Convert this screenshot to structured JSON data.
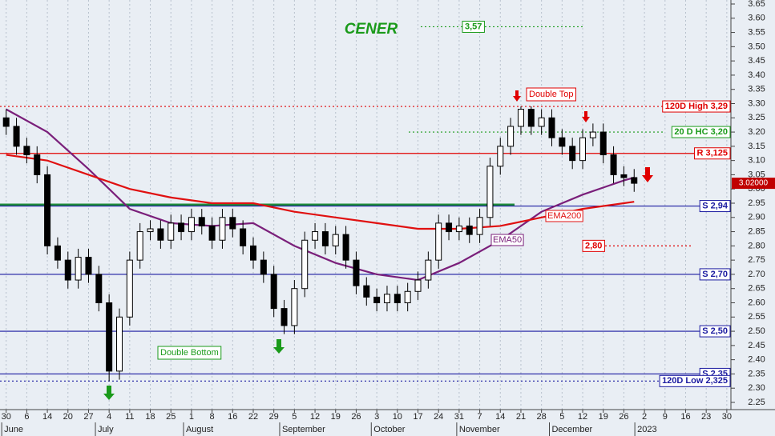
{
  "chart_data": {
    "type": "candlestick",
    "title": "CENER",
    "x": [
      0,
      0.5,
      1,
      1.5,
      2,
      2.5,
      3,
      3.5,
      4,
      4.5,
      5,
      5.5,
      6,
      6.5,
      7,
      7.5,
      8,
      8.5,
      9,
      9.5,
      10,
      10.5,
      11,
      11.5,
      12,
      12.5,
      13,
      13.5,
      14,
      14.5,
      15,
      15.5,
      16,
      16.5,
      17,
      17.5,
      18,
      18.5,
      19,
      19.5,
      20,
      20.5,
      21,
      21.5,
      22,
      22.5,
      23,
      23.5,
      24,
      24.5,
      25,
      25.5,
      26,
      26.5,
      27,
      27.5,
      28,
      28.5,
      29,
      29.5,
      30,
      30.5
    ],
    "open": [
      3.25,
      3.22,
      3.15,
      3.12,
      3.05,
      2.8,
      2.75,
      2.68,
      2.76,
      2.7,
      2.6,
      2.36,
      2.55,
      2.75,
      2.85,
      2.86,
      2.82,
      2.88,
      2.85,
      2.9,
      2.87,
      2.82,
      2.9,
      2.86,
      2.8,
      2.75,
      2.7,
      2.58,
      2.52,
      2.65,
      2.82,
      2.85,
      2.8,
      2.84,
      2.75,
      2.66,
      2.62,
      2.6,
      2.63,
      2.6,
      2.64,
      2.68,
      2.75,
      2.88,
      2.85,
      2.87,
      2.84,
      2.9,
      3.08,
      3.15,
      3.22,
      3.28,
      3.22,
      3.25,
      3.18,
      3.15,
      3.1,
      3.18,
      3.2,
      3.12,
      3.05,
      3.04
    ],
    "high": [
      3.28,
      3.25,
      3.18,
      3.15,
      3.08,
      2.83,
      2.78,
      2.79,
      2.79,
      2.73,
      2.63,
      2.58,
      2.78,
      2.88,
      2.89,
      2.89,
      2.91,
      2.91,
      2.93,
      2.93,
      2.9,
      2.93,
      2.93,
      2.89,
      2.83,
      2.78,
      2.73,
      2.61,
      2.68,
      2.85,
      2.88,
      2.88,
      2.87,
      2.87,
      2.78,
      2.69,
      2.65,
      2.66,
      2.66,
      2.67,
      2.71,
      2.78,
      2.91,
      2.91,
      2.9,
      2.9,
      2.93,
      3.11,
      3.18,
      3.25,
      3.29,
      3.29,
      3.28,
      3.28,
      3.21,
      3.18,
      3.21,
      3.23,
      3.23,
      3.15,
      3.08,
      3.07
    ],
    "low": [
      3.19,
      3.12,
      3.09,
      3.02,
      2.77,
      2.72,
      2.65,
      2.65,
      2.67,
      2.57,
      2.325,
      2.33,
      2.52,
      2.72,
      2.82,
      2.79,
      2.79,
      2.82,
      2.82,
      2.84,
      2.79,
      2.79,
      2.83,
      2.77,
      2.72,
      2.67,
      2.55,
      2.49,
      2.49,
      2.62,
      2.79,
      2.77,
      2.77,
      2.72,
      2.63,
      2.59,
      2.57,
      2.57,
      2.57,
      2.57,
      2.61,
      2.65,
      2.72,
      2.82,
      2.82,
      2.81,
      2.81,
      2.87,
      3.05,
      3.12,
      3.19,
      3.19,
      3.19,
      3.15,
      3.12,
      3.07,
      3.07,
      3.15,
      3.09,
      3.02,
      3.01,
      2.99
    ],
    "close": [
      3.22,
      3.15,
      3.12,
      3.05,
      2.8,
      2.75,
      2.68,
      2.76,
      2.7,
      2.6,
      2.36,
      2.55,
      2.75,
      2.85,
      2.86,
      2.82,
      2.88,
      2.85,
      2.9,
      2.87,
      2.82,
      2.9,
      2.86,
      2.8,
      2.75,
      2.7,
      2.58,
      2.52,
      2.65,
      2.82,
      2.85,
      2.8,
      2.84,
      2.75,
      2.66,
      2.62,
      2.6,
      2.63,
      2.6,
      2.64,
      2.68,
      2.75,
      2.88,
      2.85,
      2.87,
      2.84,
      2.9,
      3.08,
      3.15,
      3.22,
      3.28,
      3.22,
      3.25,
      3.18,
      3.15,
      3.1,
      3.18,
      3.2,
      3.12,
      3.05,
      3.04,
      3.02
    ],
    "overlays": [
      {
        "name": "EMA50",
        "color": "#7a1f7a",
        "x": [
          0,
          2,
          4,
          6,
          8,
          10,
          12,
          14,
          16,
          18,
          20,
          22,
          24,
          26,
          28,
          30,
          30.5
        ],
        "values": [
          3.28,
          3.2,
          3.07,
          2.93,
          2.88,
          2.87,
          2.88,
          2.8,
          2.74,
          2.7,
          2.68,
          2.74,
          2.82,
          2.92,
          2.98,
          3.03,
          3.04
        ]
      },
      {
        "name": "EMA200",
        "color": "#e01010",
        "x": [
          0,
          2,
          4,
          6,
          8,
          10,
          12,
          14,
          16,
          18,
          20,
          22,
          24,
          26,
          28,
          30,
          30.5
        ],
        "values": [
          3.12,
          3.1,
          3.05,
          3.0,
          2.97,
          2.95,
          2.95,
          2.92,
          2.9,
          2.88,
          2.86,
          2.86,
          2.87,
          2.9,
          2.93,
          2.95,
          2.955
        ]
      }
    ],
    "neckline": 2.945,
    "levels": [
      {
        "label": "120D High 3,29",
        "value": 3.29,
        "color": "#e00000",
        "style": "dotted"
      },
      {
        "label": "20 D HC 3,20",
        "value": 3.2,
        "color": "#1a9a1a",
        "style": "dotted"
      },
      {
        "label": "R 3,125",
        "value": 3.125,
        "color": "#e00000",
        "style": "solid"
      },
      {
        "label": "S 2,94",
        "value": 2.94,
        "color": "#1a1aa0",
        "style": "solid"
      },
      {
        "label": "S 2,70",
        "value": 2.7,
        "color": "#1a1aa0",
        "style": "solid"
      },
      {
        "label": "S 2,50",
        "value": 2.5,
        "color": "#1a1aa0",
        "style": "solid"
      },
      {
        "label": "S 2,35",
        "value": 2.35,
        "color": "#1a1aa0",
        "style": "solid"
      },
      {
        "label": "120D Low 2,325",
        "value": 2.325,
        "color": "#1a1aa0",
        "style": "dotted"
      },
      {
        "label": "3,57",
        "value": 3.57,
        "color": "#1a9a1a",
        "style": "dotted"
      },
      {
        "label": "2,80",
        "value": 2.8,
        "color": "#e00000",
        "style": "dotted"
      }
    ],
    "last_price": {
      "value": 3.02,
      "label": "3.02000"
    },
    "annotations": [
      "Double Top",
      "Double Bottom"
    ],
    "ylim": [
      2.25,
      3.65
    ],
    "yticks": [
      2.25,
      {
        "value": 2.3,
        "label": "2.30"
      },
      2.35,
      {
        "value": 2.4,
        "label": "2.40"
      },
      2.45,
      {
        "value": 2.5,
        "label": "2.50"
      },
      2.55,
      {
        "value": 2.6,
        "label": "2.60"
      },
      2.65,
      {
        "value": 2.7,
        "label": "2.70"
      },
      2.75,
      {
        "value": 2.8,
        "label": "2.80"
      },
      2.85,
      {
        "value": 2.9,
        "label": "2.90"
      },
      2.95,
      {
        "value": 3,
        "label": "3.00"
      },
      3.05,
      {
        "value": 3.1,
        "label": "3.10"
      },
      3.15,
      {
        "value": 3.2,
        "label": "3.20"
      },
      3.25,
      {
        "value": 3.3,
        "label": "3.30"
      },
      3.35,
      {
        "value": 3.4,
        "label": "3.40"
      },
      3.45,
      {
        "value": 3.5,
        "label": "3.50"
      },
      3.55,
      {
        "value": 3.6,
        "label": "3.60"
      },
      3.65
    ],
    "xlim": [
      -0.3,
      35.2
    ],
    "xticks": [
      {
        "value": 0,
        "label": "30"
      },
      {
        "value": 1,
        "label": "6"
      },
      {
        "value": 2,
        "label": "14"
      },
      {
        "value": 3,
        "label": "20"
      },
      {
        "value": 4,
        "label": "27"
      },
      {
        "value": 5,
        "label": "4"
      },
      {
        "value": 6,
        "label": "11"
      },
      {
        "value": 7,
        "label": "18"
      },
      {
        "value": 8,
        "label": "25"
      },
      {
        "value": 9,
        "label": "1"
      },
      {
        "value": 10,
        "label": "8"
      },
      {
        "value": 11,
        "label": "16"
      },
      {
        "value": 12,
        "label": "22"
      },
      {
        "value": 13,
        "label": "29"
      },
      {
        "value": 14,
        "label": "5"
      },
      {
        "value": 15,
        "label": "12"
      },
      {
        "value": 16,
        "label": "19"
      },
      {
        "value": 17,
        "label": "26"
      },
      {
        "value": 18,
        "label": "3"
      },
      {
        "value": 19,
        "label": "10"
      },
      {
        "value": 20,
        "label": "17"
      },
      {
        "value": 21,
        "label": "24"
      },
      {
        "value": 22,
        "label": "31"
      },
      {
        "value": 23,
        "label": "7"
      },
      {
        "value": 24,
        "label": "14"
      },
      {
        "value": 25,
        "label": "21"
      },
      {
        "value": 26,
        "label": "28"
      },
      {
        "value": 27,
        "label": "5"
      },
      {
        "value": 28,
        "label": "12"
      },
      {
        "value": 29,
        "label": "19"
      },
      {
        "value": 30,
        "label": "26"
      },
      {
        "value": 31,
        "label": "2"
      },
      {
        "value": 32,
        "label": "9"
      },
      {
        "value": 33,
        "label": "16"
      },
      {
        "value": 34,
        "label": "23"
      },
      {
        "value": 35,
        "label": "30"
      }
    ],
    "months": [
      {
        "value": -0.1,
        "label": "June"
      },
      {
        "value": 4.45,
        "label": "July"
      },
      {
        "value": 8.73,
        "label": "August"
      },
      {
        "value": 13.4,
        "label": "September"
      },
      {
        "value": 17.85,
        "label": "October"
      },
      {
        "value": 22,
        "label": "November"
      },
      {
        "value": 26.5,
        "label": "December"
      },
      {
        "value": 30.65,
        "label": "2023"
      }
    ],
    "grid": true
  }
}
